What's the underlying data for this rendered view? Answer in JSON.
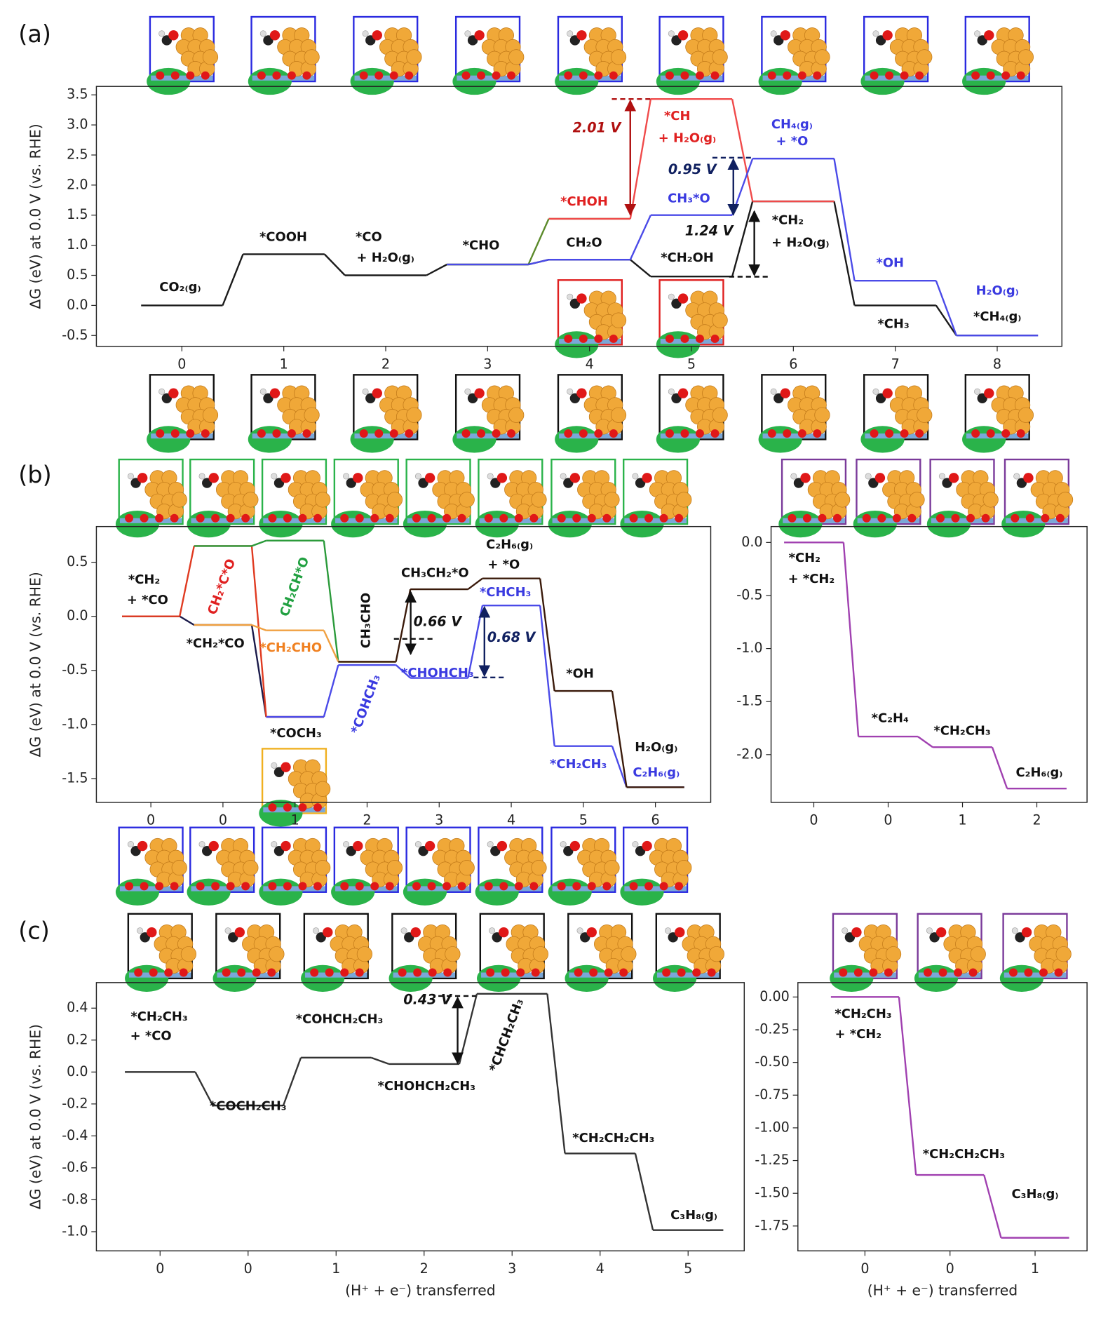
{
  "panel_labels": [
    "(a)",
    "(b)",
    "(c)"
  ],
  "chart_data": [
    {
      "type": "line",
      "ylabel": "ΔG (eV) at 0.0 V (vs. RHE)",
      "categories": [
        "0",
        "1",
        "2",
        "3",
        "4",
        "5",
        "6",
        "7",
        "8"
      ],
      "series": [
        {
          "color": "#1a1a1a",
          "values": [
            0,
            0.85,
            0.5,
            0.68,
            0.76,
            0.48,
            1.73,
            0,
            -0.5
          ]
        },
        {
          "color": "#5b8a2a",
          "values": [
            null,
            null,
            null,
            0.68,
            1.44,
            null,
            null,
            null,
            null
          ]
        },
        {
          "color": "#f04a4a",
          "values": [
            null,
            null,
            null,
            null,
            1.44,
            3.43,
            1.73,
            null,
            null
          ]
        },
        {
          "color": "#4a4ae8",
          "values": [
            null,
            null,
            null,
            0.68,
            0.76,
            1.5,
            2.44,
            0.41,
            -0.5
          ]
        }
      ],
      "ylim": [
        -0.68,
        3.64
      ],
      "yticks": [
        -0.5,
        {
          "value": 0,
          "label": "0.0"
        },
        0.5,
        {
          "value": 1,
          "label": "1.0"
        },
        1.5,
        {
          "value": 2,
          "label": "2.0"
        },
        2.5,
        {
          "value": 3,
          "label": "3.0"
        },
        3.5
      ],
      "annotations": [
        {
          "text": "CO₂₍g₎",
          "color": "#111"
        },
        {
          "text": "*COOH",
          "color": "#111"
        },
        {
          "text": "*CO",
          "color": "#111"
        },
        {
          "text": "+ H₂O₍g₎",
          "color": "#111"
        },
        {
          "text": "*CHO",
          "color": "#111"
        },
        {
          "text": "*CHOH",
          "color": "#e02020"
        },
        {
          "text": "CH₂O",
          "color": "#111"
        },
        {
          "text": "*CH",
          "color": "#e02020"
        },
        {
          "text": "+ H₂O₍g₎",
          "color": "#e02020"
        },
        {
          "text": "CH₃*O",
          "color": "#3a3ae0"
        },
        {
          "text": "*CH₂OH",
          "color": "#111"
        },
        {
          "text": "CH₄₍g₎",
          "color": "#3a3ae0"
        },
        {
          "text": "+ *O",
          "color": "#3a3ae0"
        },
        {
          "text": "*CH₂",
          "color": "#111"
        },
        {
          "text": "+ H₂O₍g₎",
          "color": "#111"
        },
        {
          "text": "*OH",
          "color": "#3a3ae0"
        },
        {
          "text": "*CH₃",
          "color": "#111"
        },
        {
          "text": "H₂O₍g₎",
          "color": "#3a3ae0"
        },
        {
          "text": "*CH₄₍g₎",
          "color": "#111"
        },
        {
          "text": "2.01 V",
          "color": "#b01010"
        },
        {
          "text": "0.95 V",
          "color": "#102060"
        },
        {
          "text": "1.24 V",
          "color": "#111"
        }
      ]
    },
    {
      "type": "line",
      "ylabel": "ΔG (eV) at 0.0 V (vs. RHE)",
      "categories": [
        "0",
        "0",
        "1",
        "2",
        "3",
        "4",
        "5",
        "6"
      ],
      "series": [
        {
          "color": "#1a1a4a",
          "values": [
            0,
            -0.08,
            -0.93,
            null,
            null,
            null,
            null,
            null
          ]
        },
        {
          "color": "#e03a20",
          "values": [
            0,
            0.65,
            -0.93,
            null,
            null,
            null,
            null,
            null
          ]
        },
        {
          "color": "#2a9a3a",
          "values": [
            null,
            0.65,
            0.7,
            -0.42,
            null,
            null,
            null,
            null
          ]
        },
        {
          "color": "#f0a040",
          "values": [
            null,
            -0.08,
            -0.13,
            -0.42,
            null,
            null,
            null,
            null
          ]
        },
        {
          "color": "#4a4ae8",
          "values": [
            null,
            null,
            -0.93,
            -0.45,
            -0.57,
            0.1,
            -1.2,
            -1.58
          ]
        },
        {
          "color": "#3a1a0a",
          "values": [
            null,
            null,
            null,
            -0.42,
            0.25,
            0.35,
            -0.69,
            -1.58
          ]
        }
      ],
      "ylim": [
        -1.72,
        0.83
      ],
      "yticks": [
        -1.5,
        {
          "value": -1,
          "label": "-1.0"
        },
        -0.5,
        {
          "value": 0,
          "label": "0.0"
        },
        0.5
      ],
      "annotations": [
        {
          "text": "*CH₂",
          "color": "#111"
        },
        {
          "text": "+ *CO",
          "color": "#111"
        },
        {
          "text": "*CH₂*CO",
          "color": "#111"
        },
        {
          "text": "CH₂*C*O",
          "color": "#e02020"
        },
        {
          "text": "CH₂CH*O",
          "color": "#20a040"
        },
        {
          "text": "*CH₂CHO",
          "color": "#f08020"
        },
        {
          "text": "CH₃CHO",
          "color": "#111"
        },
        {
          "text": "*COCH₃",
          "color": "#111"
        },
        {
          "text": "*COHCH₃",
          "color": "#3a3ae0"
        },
        {
          "text": "CH₃CH₂*O",
          "color": "#111"
        },
        {
          "text": "C₂H₆₍g₎",
          "color": "#111"
        },
        {
          "text": "+ *O",
          "color": "#111"
        },
        {
          "text": "*CHCH₃",
          "color": "#3a3ae0"
        },
        {
          "text": "*CHOHCH₃",
          "color": "#3a3ae0"
        },
        {
          "text": "0.66 V",
          "color": "#111"
        },
        {
          "text": "0.68 V",
          "color": "#102060"
        },
        {
          "text": "*OH",
          "color": "#111"
        },
        {
          "text": "*CH₂CH₃",
          "color": "#3a3ae0"
        },
        {
          "text": "H₂O₍g₎",
          "color": "#111"
        },
        {
          "text": "C₂H₆₍g₎",
          "color": "#3a3ae0"
        }
      ]
    },
    {
      "type": "line",
      "categories": [
        "0",
        "0",
        "1",
        "2"
      ],
      "series": [
        {
          "color": "#a040b0",
          "values": [
            0,
            -1.83,
            -1.93,
            -2.32
          ]
        }
      ],
      "ylim": [
        -2.45,
        0.15
      ],
      "yticks": [
        {
          "value": 0,
          "label": "0.0"
        },
        -0.5,
        {
          "value": -1,
          "label": "-1.0"
        },
        -1.5,
        {
          "value": -2,
          "label": "-2.0"
        }
      ],
      "annotations": [
        {
          "text": "*CH₂",
          "color": "#111"
        },
        {
          "text": "+ *CH₂",
          "color": "#111"
        },
        {
          "text": "*C₂H₄",
          "color": "#111"
        },
        {
          "text": "*CH₂CH₃",
          "color": "#111"
        },
        {
          "text": "C₂H₆₍g₎",
          "color": "#111"
        }
      ]
    },
    {
      "type": "line",
      "ylabel": "ΔG (eV) at 0.0 V (vs. RHE)",
      "xlabel": "(H⁺ + e⁻) transferred",
      "categories": [
        "0",
        "0",
        "1",
        "2",
        "3",
        "4",
        "5"
      ],
      "series": [
        {
          "color": "#333333",
          "values": [
            0,
            -0.21,
            0.09,
            0.05,
            0.49,
            -0.51,
            -0.99
          ]
        }
      ],
      "ylim": [
        -1.12,
        0.56
      ],
      "yticks": [
        {
          "value": -1,
          "label": "-1.0"
        },
        -0.8,
        -0.6,
        -0.4,
        -0.2,
        {
          "value": 0,
          "label": "0.0"
        },
        0.2,
        0.4
      ],
      "annotations": [
        {
          "text": "*CH₂CH₃",
          "color": "#111"
        },
        {
          "text": "+ *CO",
          "color": "#111"
        },
        {
          "text": "*COCH₂CH₃",
          "color": "#111"
        },
        {
          "text": "*COHCH₂CH₃",
          "color": "#111"
        },
        {
          "text": "*CHOHCH₂CH₃",
          "color": "#111"
        },
        {
          "text": "*CHCH₂CH₃",
          "color": "#111"
        },
        {
          "text": "0.43 V",
          "color": "#111"
        },
        {
          "text": "*CH₂CH₂CH₃",
          "color": "#111"
        },
        {
          "text": "C₃H₈₍g₎",
          "color": "#111"
        }
      ]
    },
    {
      "type": "line",
      "xlabel": "(H⁺ + e⁻) transferred",
      "categories": [
        "0",
        "0",
        "1"
      ],
      "series": [
        {
          "color": "#a040b0",
          "values": [
            0,
            -1.36,
            -1.84
          ]
        }
      ],
      "ylim": [
        -1.94,
        0.11
      ],
      "yticks": [
        {
          "value": 0,
          "label": "0.00"
        },
        -0.25,
        {
          "value": -0.5,
          "label": "-0.50"
        },
        -0.75,
        {
          "value": -1,
          "label": "-1.00"
        },
        -1.25,
        {
          "value": -1.5,
          "label": "-1.50"
        },
        -1.75
      ],
      "annotations": [
        {
          "text": "*CH₂CH₃",
          "color": "#111"
        },
        {
          "text": "+ *CH₂",
          "color": "#111"
        },
        {
          "text": "*CH₂CH₂CH₃",
          "color": "#111"
        },
        {
          "text": "C₃H₈₍g₎",
          "color": "#111"
        }
      ]
    }
  ]
}
